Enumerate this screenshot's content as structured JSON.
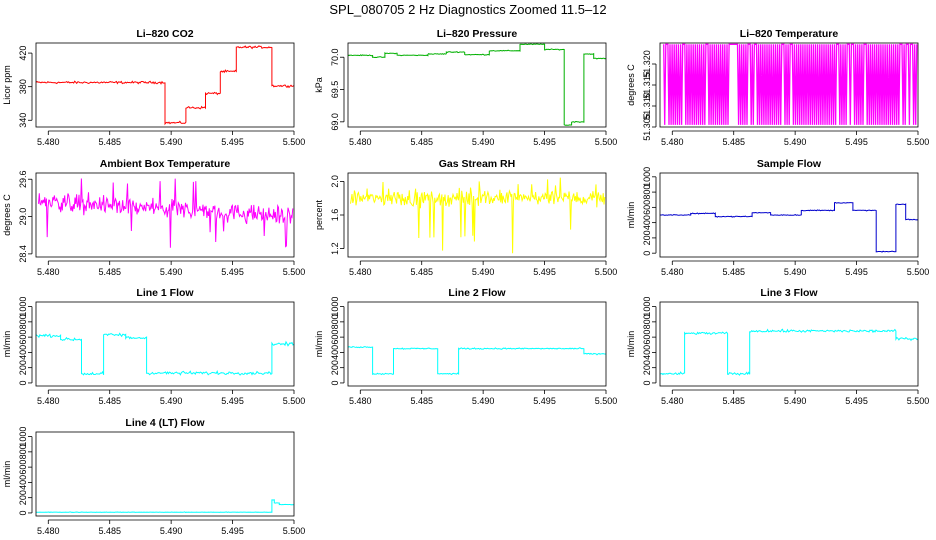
{
  "figure": {
    "title": "SPL_080705  2 Hz Diagnostics Zoomed 11.5–12"
  },
  "chart_data": [
    {
      "type": "line",
      "title": "Li–820 CO2",
      "xlabel": "",
      "ylabel": "Licor ppm",
      "color": "#ff0000",
      "style": "line",
      "xlim": [
        5.479,
        5.5
      ],
      "ylim": [
        332,
        432
      ],
      "xticks": [
        5.48,
        5.485,
        5.49,
        5.495,
        5.5
      ],
      "xtick_labels": [
        "5.480",
        "5.485",
        "5.490",
        "5.495",
        "5.500"
      ],
      "yticks": [
        340,
        380,
        420
      ],
      "ytick_labels": [
        "340",
        "380",
        "420"
      ],
      "segments": [
        [
          5.479,
          5.4895,
          385
        ],
        [
          5.4895,
          5.4912,
          337
        ],
        [
          5.4912,
          5.4928,
          355
        ],
        [
          5.4928,
          5.494,
          372
        ],
        [
          5.494,
          5.4953,
          398
        ],
        [
          5.4953,
          5.4982,
          427
        ],
        [
          5.4982,
          5.5,
          381
        ]
      ],
      "noise": 2
    },
    {
      "type": "line",
      "title": "Li–820 Pressure",
      "xlabel": "",
      "ylabel": "kPa",
      "color": "#00b000",
      "style": "line",
      "xlim": [
        5.479,
        5.5
      ],
      "ylim": [
        68.92,
        70.22
      ],
      "xticks": [
        5.48,
        5.485,
        5.49,
        5.495,
        5.5
      ],
      "xtick_labels": [
        "5.480",
        "5.485",
        "5.490",
        "5.495",
        "5.500"
      ],
      "yticks": [
        69.0,
        69.5,
        70.0
      ],
      "ytick_labels": [
        "69.0",
        "69.5",
        "70.0"
      ],
      "segments": [
        [
          5.479,
          5.481,
          70.03
        ],
        [
          5.481,
          5.482,
          70.0
        ],
        [
          5.482,
          5.483,
          70.06
        ],
        [
          5.483,
          5.4855,
          70.03
        ],
        [
          5.4855,
          5.487,
          70.05
        ],
        [
          5.487,
          5.4885,
          70.08
        ],
        [
          5.4885,
          5.4905,
          70.04
        ],
        [
          5.4905,
          5.493,
          70.1
        ],
        [
          5.493,
          5.495,
          70.2
        ],
        [
          5.495,
          5.4966,
          70.12
        ],
        [
          5.4966,
          5.4972,
          68.95
        ],
        [
          5.4972,
          5.4982,
          69.0
        ],
        [
          5.4982,
          5.499,
          70.05
        ],
        [
          5.499,
          5.5,
          69.98
        ]
      ],
      "noise": 0.01
    },
    {
      "type": "line",
      "title": "Li–820 Temperature",
      "xlabel": "",
      "ylabel": "degrees C",
      "color": "#ff00ff",
      "style": "toggle",
      "xlim": [
        5.479,
        5.5
      ],
      "ylim": [
        51.305,
        51.325
      ],
      "xticks": [
        5.48,
        5.485,
        5.49,
        5.495,
        5.5
      ],
      "xtick_labels": [
        "5.480",
        "5.485",
        "5.490",
        "5.495",
        "5.500"
      ],
      "yticks": [
        51.305,
        51.31,
        51.315,
        51.32
      ],
      "ytick_labels": [
        "51.305",
        "51.310",
        "51.315",
        "51.320"
      ],
      "levels": [
        51.3055,
        51.3247
      ],
      "density": 0.85
    },
    {
      "type": "line",
      "title": "Ambient Box Temperature",
      "xlabel": "",
      "ylabel": "degrees C",
      "color": "#ff00ff",
      "style": "noisy",
      "xlim": [
        5.479,
        5.5
      ],
      "ylim": [
        28.35,
        29.7
      ],
      "xticks": [
        5.48,
        5.485,
        5.49,
        5.495,
        5.5
      ],
      "xtick_labels": [
        "5.480",
        "5.485",
        "5.490",
        "5.495",
        "5.500"
      ],
      "yticks": [
        28.4,
        29.0,
        29.6
      ],
      "ytick_labels": [
        "28.4",
        "29.0",
        "29.6"
      ],
      "base_start": 29.25,
      "base_end": 29.0,
      "noise": 0.22,
      "spike_range": [
        28.4,
        29.62
      ]
    },
    {
      "type": "line",
      "title": "Gas Stream RH",
      "xlabel": "",
      "ylabel": "percent",
      "color": "#ffff00",
      "style": "noisy",
      "xlim": [
        5.479,
        5.5
      ],
      "ylim": [
        1.1,
        2.1
      ],
      "xticks": [
        5.48,
        5.485,
        5.49,
        5.495,
        5.5
      ],
      "xtick_labels": [
        "5.480",
        "5.485",
        "5.490",
        "5.495",
        "5.500"
      ],
      "yticks": [
        1.2,
        1.6,
        2.0
      ],
      "ytick_labels": [
        "1.2",
        "1.6",
        "2.0"
      ],
      "base_start": 1.8,
      "base_end": 1.8,
      "noise": 0.14,
      "spike_range": [
        1.12,
        2.05
      ]
    },
    {
      "type": "line",
      "title": "Sample Flow",
      "xlabel": "",
      "ylabel": "ml/min",
      "color": "#0000cc",
      "style": "line",
      "xlim": [
        5.479,
        5.5
      ],
      "ylim": [
        -50,
        1050
      ],
      "xticks": [
        5.48,
        5.485,
        5.49,
        5.495,
        5.5
      ],
      "xtick_labels": [
        "5.480",
        "5.485",
        "5.490",
        "5.495",
        "5.500"
      ],
      "yticks": [
        0,
        200,
        400,
        600,
        800,
        1000
      ],
      "ytick_labels": [
        "0",
        "200",
        "400",
        "600",
        "800",
        "1000"
      ],
      "segments": [
        [
          5.479,
          5.4815,
          500
        ],
        [
          5.4815,
          5.4835,
          520
        ],
        [
          5.4835,
          5.4865,
          480
        ],
        [
          5.4865,
          5.488,
          530
        ],
        [
          5.488,
          5.4905,
          500
        ],
        [
          5.4905,
          5.4932,
          560
        ],
        [
          5.4932,
          5.4947,
          660
        ],
        [
          5.4947,
          5.4966,
          560
        ],
        [
          5.4966,
          5.4982,
          20
        ],
        [
          5.4982,
          5.499,
          640
        ],
        [
          5.499,
          5.5,
          440
        ]
      ],
      "noise": 8
    },
    {
      "type": "line",
      "title": "Line 1 Flow",
      "xlabel": "",
      "ylabel": "ml/min",
      "color": "#00ffff",
      "style": "line",
      "xlim": [
        5.479,
        5.5
      ],
      "ylim": [
        -40,
        1060
      ],
      "xticks": [
        5.48,
        5.485,
        5.49,
        5.495,
        5.5
      ],
      "xtick_labels": [
        "5.480",
        "5.485",
        "5.490",
        "5.495",
        "5.500"
      ],
      "yticks": [
        0,
        200,
        400,
        600,
        800,
        1000
      ],
      "ytick_labels": [
        "0",
        "200",
        "400",
        "600",
        "800",
        "1000"
      ],
      "segments": [
        [
          5.479,
          5.481,
          620
        ],
        [
          5.481,
          5.4827,
          570
        ],
        [
          5.4827,
          5.4845,
          120
        ],
        [
          5.4845,
          5.4863,
          630
        ],
        [
          5.4863,
          5.488,
          590
        ],
        [
          5.488,
          5.4982,
          130
        ],
        [
          5.4982,
          5.5,
          510
        ]
      ],
      "noise": 30
    },
    {
      "type": "line",
      "title": "Line 2 Flow",
      "xlabel": "",
      "ylabel": "ml/min",
      "color": "#00ffff",
      "style": "line",
      "xlim": [
        5.479,
        5.5
      ],
      "ylim": [
        -40,
        1060
      ],
      "xticks": [
        5.48,
        5.485,
        5.49,
        5.495,
        5.5
      ],
      "xtick_labels": [
        "5.480",
        "5.485",
        "5.490",
        "5.495",
        "5.500"
      ],
      "yticks": [
        0,
        200,
        400,
        600,
        800,
        1000
      ],
      "ytick_labels": [
        "0",
        "200",
        "400",
        "600",
        "800",
        "1000"
      ],
      "segments": [
        [
          5.479,
          5.481,
          470
        ],
        [
          5.481,
          5.4827,
          120
        ],
        [
          5.4827,
          5.4863,
          450
        ],
        [
          5.4863,
          5.488,
          120
        ],
        [
          5.488,
          5.4982,
          450
        ],
        [
          5.4982,
          5.5,
          380
        ]
      ],
      "noise": 12
    },
    {
      "type": "line",
      "title": "Line 3 Flow",
      "xlabel": "",
      "ylabel": "ml/min",
      "color": "#00ffff",
      "style": "line",
      "xlim": [
        5.479,
        5.5
      ],
      "ylim": [
        -40,
        1060
      ],
      "xticks": [
        5.48,
        5.485,
        5.49,
        5.495,
        5.5
      ],
      "xtick_labels": [
        "5.480",
        "5.485",
        "5.490",
        "5.495",
        "5.500"
      ],
      "yticks": [
        0,
        200,
        400,
        600,
        800,
        1000
      ],
      "ytick_labels": [
        "0",
        "200",
        "400",
        "600",
        "800",
        "1000"
      ],
      "segments": [
        [
          5.479,
          5.481,
          120
        ],
        [
          5.481,
          5.4845,
          650
        ],
        [
          5.4845,
          5.4863,
          120
        ],
        [
          5.4863,
          5.4982,
          680
        ],
        [
          5.4982,
          5.5,
          580
        ]
      ],
      "noise": 25
    },
    {
      "type": "line",
      "title": "Line 4 (LT) Flow",
      "xlabel": "",
      "ylabel": "ml/min",
      "color": "#00ffff",
      "style": "line",
      "xlim": [
        5.479,
        5.5
      ],
      "ylim": [
        -40,
        1060
      ],
      "xticks": [
        5.48,
        5.485,
        5.49,
        5.495,
        5.5
      ],
      "xtick_labels": [
        "5.480",
        "5.485",
        "5.490",
        "5.495",
        "5.500"
      ],
      "yticks": [
        0,
        200,
        400,
        600,
        800,
        1000
      ],
      "ytick_labels": [
        "0",
        "200",
        "400",
        "600",
        "800",
        "1000"
      ],
      "segments": [
        [
          5.479,
          5.4982,
          10
        ],
        [
          5.4982,
          5.4984,
          170
        ],
        [
          5.4984,
          5.4988,
          130
        ],
        [
          5.4988,
          5.5,
          110
        ]
      ],
      "noise": 4
    }
  ]
}
